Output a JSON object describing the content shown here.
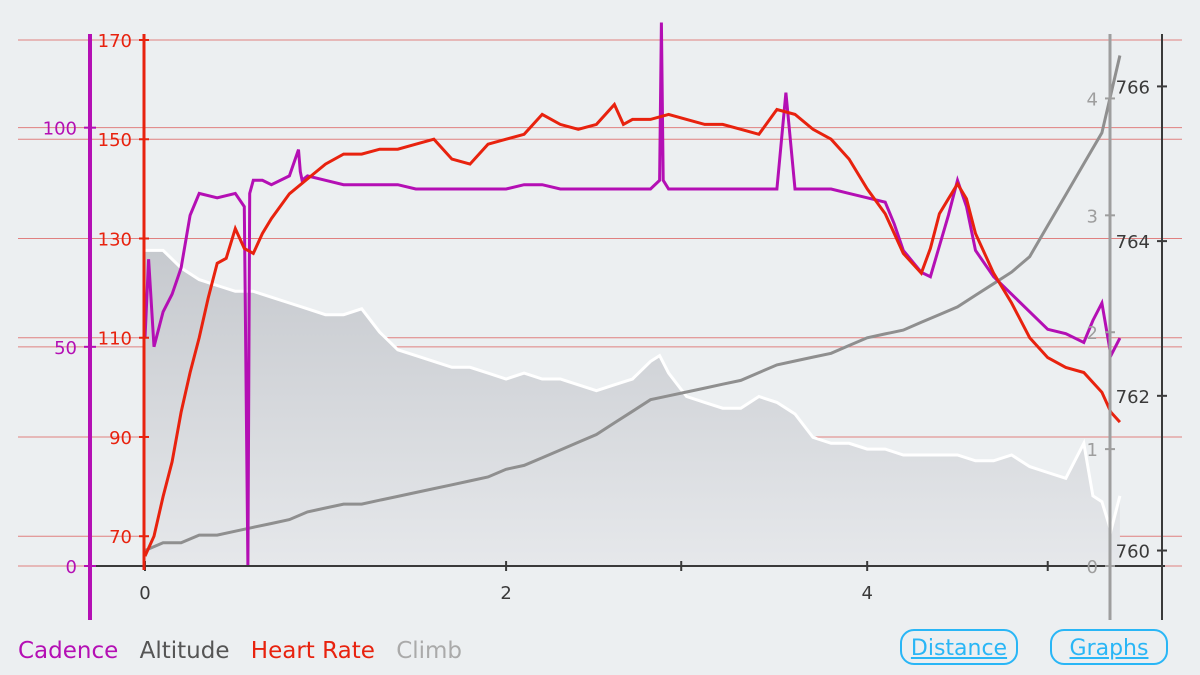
{
  "chart_data": {
    "type": "line",
    "x_axis": {
      "ticks": [
        "0",
        "2",
        "4"
      ],
      "range": [
        0,
        5.5
      ]
    },
    "axes": {
      "cadence": {
        "label": "Cadence",
        "color": "#b40fb4",
        "range": [
          0,
          120
        ],
        "ticks": [
          "0",
          "50",
          "100"
        ]
      },
      "heart_rate": {
        "label": "Heart Rate",
        "color": "#e8220e",
        "range": [
          64,
          170
        ],
        "ticks": [
          "70",
          "90",
          "110",
          "130",
          "150",
          "170"
        ]
      },
      "climb": {
        "label": "Climb",
        "color": "#9e9e9e",
        "range": [
          0,
          4.5
        ],
        "ticks": [
          "0",
          "1",
          "2",
          "3",
          "4"
        ]
      },
      "altitude": {
        "label": "Altitude",
        "color": "#3a3a3a",
        "range": [
          759.8,
          766.6
        ],
        "ticks": [
          "760",
          "762",
          "764",
          "766"
        ]
      }
    },
    "series": [
      {
        "name": "Heart Rate",
        "x": [
          0,
          0.05,
          0.1,
          0.15,
          0.2,
          0.25,
          0.3,
          0.35,
          0.4,
          0.45,
          0.5,
          0.55,
          0.6,
          0.65,
          0.7,
          0.8,
          0.9,
          1.0,
          1.1,
          1.2,
          1.3,
          1.4,
          1.5,
          1.6,
          1.7,
          1.8,
          1.9,
          2.0,
          2.1,
          2.2,
          2.3,
          2.4,
          2.5,
          2.6,
          2.65,
          2.7,
          2.8,
          2.9,
          3.0,
          3.1,
          3.2,
          3.3,
          3.4,
          3.5,
          3.6,
          3.7,
          3.8,
          3.9,
          4.0,
          4.1,
          4.2,
          4.3,
          4.35,
          4.4,
          4.45,
          4.5,
          4.55,
          4.6,
          4.7,
          4.8,
          4.9,
          5.0,
          5.1,
          5.2,
          5.3,
          5.35,
          5.4
        ],
        "values": [
          66,
          70,
          78,
          85,
          95,
          103,
          110,
          118,
          125,
          126,
          132,
          128,
          127,
          131,
          134,
          139,
          142,
          145,
          147,
          147,
          148,
          148,
          149,
          150,
          146,
          145,
          149,
          150,
          151,
          155,
          153,
          152,
          153,
          157,
          153,
          154,
          154,
          155,
          154,
          153,
          153,
          152,
          151,
          156,
          155,
          152,
          150,
          146,
          140,
          135,
          127,
          123,
          128,
          135,
          138,
          141,
          138,
          131,
          123,
          117,
          110,
          106,
          104,
          103,
          99,
          95,
          93
        ]
      },
      {
        "name": "Cadence",
        "x": [
          0,
          0.02,
          0.05,
          0.1,
          0.15,
          0.2,
          0.25,
          0.3,
          0.4,
          0.5,
          0.55,
          0.57,
          0.58,
          0.6,
          0.65,
          0.7,
          0.8,
          0.85,
          0.86,
          0.87,
          0.9,
          1.0,
          1.1,
          1.2,
          1.3,
          1.4,
          1.5,
          1.6,
          1.7,
          1.8,
          1.9,
          2.0,
          2.1,
          2.2,
          2.3,
          2.4,
          2.5,
          2.6,
          2.7,
          2.8,
          2.85,
          2.86,
          2.87,
          2.9,
          3.0,
          3.1,
          3.2,
          3.3,
          3.4,
          3.5,
          3.55,
          3.6,
          3.7,
          3.8,
          3.9,
          4.0,
          4.1,
          4.15,
          4.2,
          4.3,
          4.35,
          4.4,
          4.45,
          4.5,
          4.55,
          4.6,
          4.7,
          4.8,
          4.9,
          5.0,
          5.1,
          5.2,
          5.25,
          5.3,
          5.35,
          5.4
        ],
        "values": [
          52,
          70,
          50,
          58,
          62,
          68,
          80,
          85,
          84,
          85,
          82,
          0,
          85,
          88,
          88,
          87,
          89,
          95,
          90,
          88,
          89,
          88,
          87,
          87,
          87,
          87,
          86,
          86,
          86,
          86,
          86,
          86,
          87,
          87,
          86,
          86,
          86,
          86,
          86,
          86,
          88,
          124,
          88,
          86,
          86,
          86,
          86,
          86,
          86,
          86,
          108,
          86,
          86,
          86,
          85,
          84,
          83,
          78,
          72,
          67,
          66,
          73,
          80,
          88,
          82,
          72,
          66,
          62,
          58,
          54,
          53,
          51,
          56,
          60,
          48,
          52
        ]
      },
      {
        "name": "Altitude",
        "x": [
          0,
          0.1,
          0.2,
          0.3,
          0.4,
          0.5,
          0.6,
          0.7,
          0.8,
          0.9,
          1.0,
          1.1,
          1.2,
          1.3,
          1.4,
          1.5,
          1.6,
          1.7,
          1.8,
          1.9,
          2.0,
          2.1,
          2.2,
          2.3,
          2.4,
          2.5,
          2.6,
          2.7,
          2.8,
          2.9,
          3.0,
          3.1,
          3.2,
          3.3,
          3.4,
          3.5,
          3.6,
          3.7,
          3.8,
          3.9,
          4.0,
          4.1,
          4.2,
          4.3,
          4.4,
          4.5,
          4.6,
          4.7,
          4.8,
          4.9,
          5.0,
          5.1,
          5.2,
          5.3,
          5.35,
          5.4
        ],
        "values": [
          760.0,
          760.1,
          760.1,
          760.2,
          760.2,
          760.25,
          760.3,
          760.35,
          760.4,
          760.5,
          760.55,
          760.6,
          760.6,
          760.65,
          760.7,
          760.75,
          760.8,
          760.85,
          760.9,
          760.95,
          761.05,
          761.1,
          761.2,
          761.3,
          761.4,
          761.5,
          761.65,
          761.8,
          761.95,
          762.0,
          762.05,
          762.1,
          762.15,
          762.2,
          762.3,
          762.4,
          762.45,
          762.5,
          762.55,
          762.65,
          762.75,
          762.8,
          762.85,
          762.95,
          763.05,
          763.15,
          763.3,
          763.45,
          763.6,
          763.8,
          764.2,
          764.6,
          765.0,
          765.4,
          765.9,
          766.4
        ]
      },
      {
        "name": "Climb",
        "x": [
          0,
          0.1,
          0.2,
          0.3,
          0.4,
          0.5,
          0.6,
          0.7,
          0.8,
          0.9,
          1.0,
          1.1,
          1.2,
          1.3,
          1.4,
          1.5,
          1.6,
          1.7,
          1.8,
          1.9,
          2.0,
          2.1,
          2.2,
          2.3,
          2.4,
          2.5,
          2.6,
          2.7,
          2.8,
          2.85,
          2.9,
          3.0,
          3.1,
          3.2,
          3.3,
          3.4,
          3.5,
          3.6,
          3.7,
          3.8,
          3.9,
          4.0,
          4.1,
          4.2,
          4.3,
          4.4,
          4.5,
          4.6,
          4.7,
          4.8,
          4.9,
          5.0,
          5.1,
          5.2,
          5.25,
          5.3,
          5.35,
          5.4
        ],
        "values": [
          2.7,
          2.7,
          2.55,
          2.45,
          2.4,
          2.35,
          2.35,
          2.3,
          2.25,
          2.2,
          2.15,
          2.15,
          2.2,
          2.0,
          1.85,
          1.8,
          1.75,
          1.7,
          1.7,
          1.65,
          1.6,
          1.65,
          1.6,
          1.6,
          1.55,
          1.5,
          1.55,
          1.6,
          1.75,
          1.8,
          1.65,
          1.45,
          1.4,
          1.35,
          1.35,
          1.45,
          1.4,
          1.3,
          1.1,
          1.05,
          1.05,
          1.0,
          1.0,
          0.95,
          0.95,
          0.95,
          0.95,
          0.9,
          0.9,
          0.95,
          0.85,
          0.8,
          0.75,
          1.05,
          0.6,
          0.55,
          0.3,
          0.6
        ]
      }
    ],
    "legend": {
      "placement": "bottom-left",
      "entries": [
        "Cadence",
        "Altitude",
        "Heart Rate",
        "Climb"
      ]
    }
  },
  "legend_labels": {
    "cadence": "Cadence",
    "altitude": "Altitude",
    "heart_rate": "Heart Rate",
    "climb": "Climb"
  },
  "buttons": {
    "distance": "Distance",
    "graphs": "Graphs"
  },
  "colors": {
    "background": "#eceff1",
    "gridline": "#e08080",
    "climb_fill": "#c9ccd1",
    "button_accent": "#29b6f6",
    "axis_dark": "#3a3a3a"
  }
}
